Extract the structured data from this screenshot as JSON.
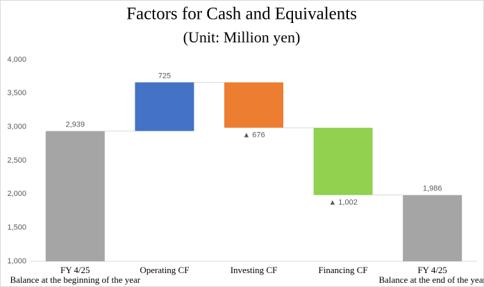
{
  "chart_data": {
    "type": "waterfall",
    "title": "Factors for Cash and Equivalents",
    "subtitle": "(Unit: Million yen)",
    "categories": [
      [
        "FY 4/25",
        "Balance at the beginning of the year"
      ],
      [
        "Operating CF"
      ],
      [
        "Investing CF"
      ],
      [
        "Financing CF"
      ],
      [
        "FY 4/25",
        "Balance at the end of the year"
      ]
    ],
    "values": [
      2939,
      725,
      -676,
      -1002,
      1986
    ],
    "value_labels": [
      "2,939",
      "725",
      "▲ 676",
      "▲ 1,002",
      "1,986"
    ],
    "totals": [
      true,
      false,
      false,
      false,
      true
    ],
    "colors": [
      "#a5a5a5",
      "#4472c4",
      "#ed7d31",
      "#92d050",
      "#a5a5a5"
    ],
    "ylim": [
      1000,
      4000
    ],
    "yticks": [
      {
        "value": 1000,
        "label": "1,000"
      },
      {
        "value": 1500,
        "label": "1,500"
      },
      {
        "value": 2000,
        "label": "2,000"
      },
      {
        "value": 2500,
        "label": "2,500"
      },
      {
        "value": 3000,
        "label": "3,000"
      },
      {
        "value": 3500,
        "label": "3,500"
      },
      {
        "value": 4000,
        "label": "4,000"
      }
    ],
    "grid": false
  }
}
